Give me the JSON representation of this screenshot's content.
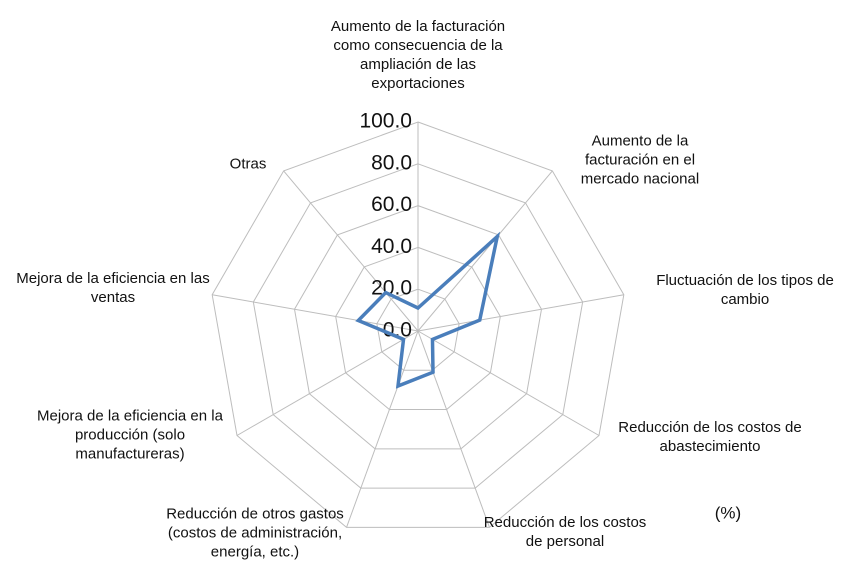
{
  "chart_data": {
    "type": "radar",
    "categories": [
      "Aumento de la facturación como consecuencia de la ampliación de las exportaciones",
      "Aumento de la facturación en el mercado nacional",
      "Fluctuación de los tipos de cambio",
      "Reducción de los costos de abastecimiento",
      "Reducción de los costos de personal",
      "Reducción de otros gastos (costos de administración, energía, etc.)",
      "Mejora de la eficiencia en la producción (solo manufactureras)",
      "Mejora de la eficiencia en las ventas",
      "Otras"
    ],
    "series": [
      {
        "color": "#4a7ebb",
        "values": [
          11,
          59,
          30,
          8,
          21,
          28,
          8,
          29,
          24
        ]
      }
    ],
    "rlim": [
      0,
      100
    ],
    "rticks": [
      {
        "value": 0,
        "label": "0.0"
      },
      {
        "value": 20,
        "label": "20.0"
      },
      {
        "value": 40,
        "label": "40.0"
      },
      {
        "value": 60,
        "label": "60.0"
      },
      {
        "value": 80,
        "label": "80.0"
      },
      {
        "value": 100,
        "label": "100.0"
      }
    ],
    "unit_label": "(%)",
    "grid": true
  }
}
